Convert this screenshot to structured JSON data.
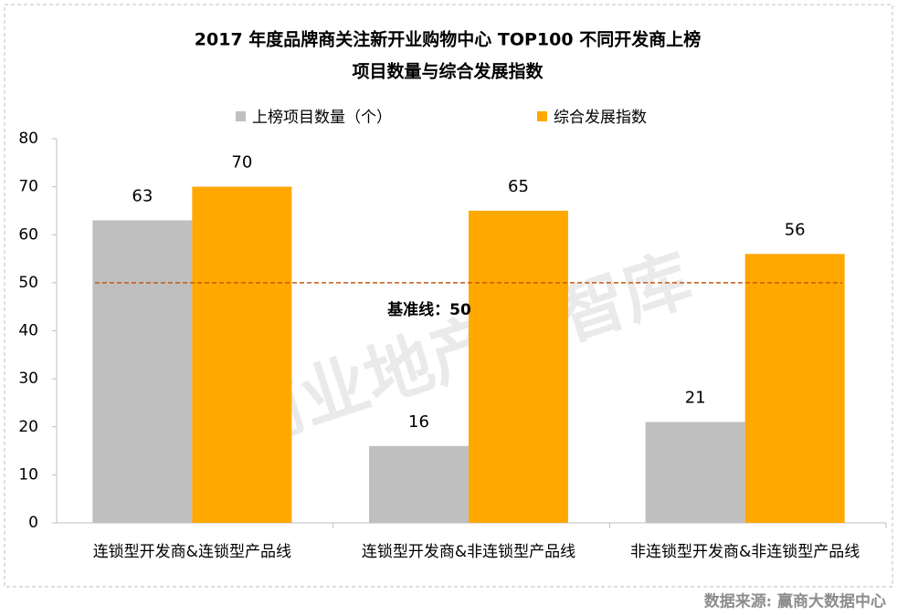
{
  "chart_data": {
    "type": "bar",
    "title": [
      "2017 年度品牌商关注新开业购物中心 TOP100 不同开发商上榜",
      "项目数量与综合发展指数"
    ],
    "categories": [
      "连锁型开发商&连锁型产品线",
      "连锁型开发商&非连锁型产品线",
      "非连锁型开发商&非连锁型产品线"
    ],
    "series": [
      {
        "name": "上榜项目数量（个）",
        "color": "#bfbfbf",
        "values": [
          63,
          16,
          21
        ]
      },
      {
        "name": "综合发展指数",
        "color": "#ffa800",
        "values": [
          70,
          65,
          56
        ]
      }
    ],
    "ylim": [
      0,
      80
    ],
    "yticks": [
      0,
      10,
      20,
      30,
      40,
      50,
      60,
      70,
      80
    ],
    "grid": false,
    "legend": "top",
    "reference_line": {
      "value": 50,
      "label": "基准线：50",
      "color": "#c55a11"
    },
    "watermark": "商业地产云智库",
    "source": "数据来源: 赢商大数据中心"
  }
}
